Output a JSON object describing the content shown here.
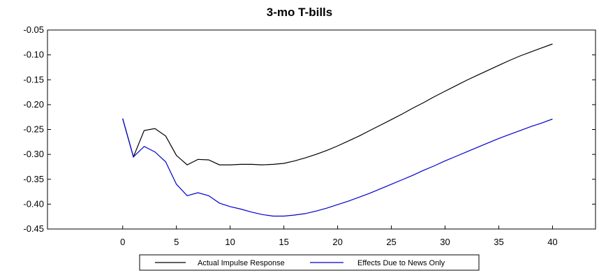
{
  "chart_data": {
    "type": "line",
    "title": "3-mo T-bills",
    "xlabel": "",
    "ylabel": "",
    "xlim": [
      -7,
      44
    ],
    "ylim": [
      -0.45,
      -0.05
    ],
    "x_ticks": [
      0,
      5,
      10,
      15,
      20,
      25,
      30,
      35,
      40
    ],
    "x_tick_labels": [
      "0",
      "5",
      "10",
      "15",
      "20",
      "25",
      "30",
      "35",
      "40"
    ],
    "y_ticks": [
      -0.05,
      -0.1,
      -0.15,
      -0.2,
      -0.25,
      -0.3,
      -0.35,
      -0.4,
      -0.45
    ],
    "y_tick_labels": [
      "-0.05",
      "-0.10",
      "-0.15",
      "-0.20",
      "-0.25",
      "-0.30",
      "-0.35",
      "-0.40",
      "-0.45"
    ],
    "grid": false,
    "legend_position": "bottom",
    "x": [
      0,
      1,
      2,
      3,
      4,
      5,
      6,
      7,
      8,
      9,
      10,
      11,
      12,
      13,
      14,
      15,
      16,
      17,
      18,
      19,
      20,
      21,
      22,
      23,
      24,
      25,
      26,
      27,
      28,
      29,
      30,
      31,
      32,
      33,
      34,
      35,
      36,
      37,
      38,
      39,
      40
    ],
    "series": [
      {
        "name": "Actual Impulse Response",
        "color": "#000000",
        "values": [
          -0.228,
          -0.305,
          -0.252,
          -0.248,
          -0.263,
          -0.302,
          -0.321,
          -0.31,
          -0.311,
          -0.321,
          -0.321,
          -0.32,
          -0.32,
          -0.321,
          -0.32,
          -0.318,
          -0.313,
          -0.307,
          -0.3,
          -0.292,
          -0.283,
          -0.273,
          -0.263,
          -0.252,
          -0.241,
          -0.23,
          -0.219,
          -0.207,
          -0.196,
          -0.184,
          -0.173,
          -0.162,
          -0.151,
          -0.141,
          -0.131,
          -0.121,
          -0.111,
          -0.102,
          -0.094,
          -0.086,
          -0.078
        ]
      },
      {
        "name": "Effects Due to News Only",
        "color": "#0000cc",
        "values": [
          -0.228,
          -0.305,
          -0.284,
          -0.295,
          -0.315,
          -0.36,
          -0.383,
          -0.377,
          -0.383,
          -0.398,
          -0.405,
          -0.41,
          -0.416,
          -0.421,
          -0.424,
          -0.424,
          -0.422,
          -0.419,
          -0.414,
          -0.408,
          -0.401,
          -0.394,
          -0.386,
          -0.378,
          -0.369,
          -0.36,
          -0.351,
          -0.342,
          -0.332,
          -0.323,
          -0.313,
          -0.304,
          -0.295,
          -0.286,
          -0.277,
          -0.268,
          -0.26,
          -0.252,
          -0.244,
          -0.237,
          -0.229
        ]
      }
    ]
  }
}
